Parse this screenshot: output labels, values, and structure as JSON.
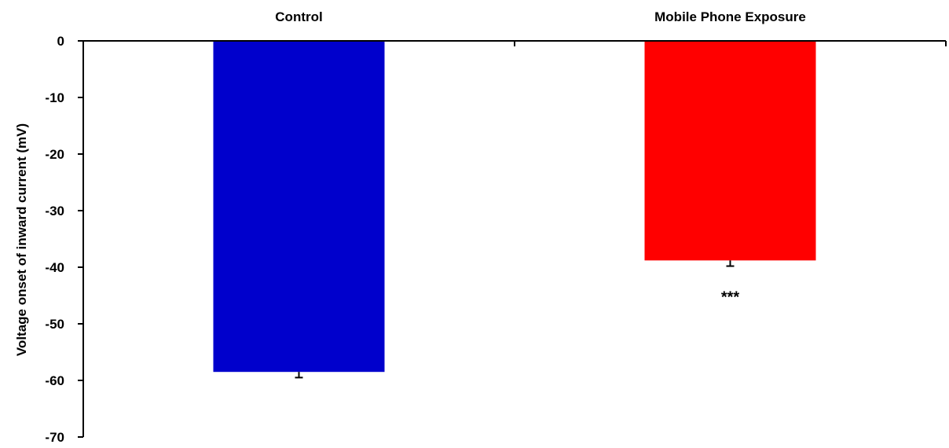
{
  "chart_data": {
    "type": "bar",
    "categories": [
      "Control",
      "Mobile Phone Exposure"
    ],
    "values": [
      -58.5,
      -38.8
    ],
    "errors": [
      1.0,
      1.0
    ],
    "colors": [
      "#0000CC",
      "#FF0000"
    ],
    "xlabel": "",
    "ylabel": "Voltage onset of inward current (mV)",
    "ylim": [
      -70,
      0
    ],
    "yticks": [
      0,
      -10,
      -20,
      -30,
      -40,
      -50,
      -60,
      -70
    ],
    "category_axis_position": "top",
    "grid": false,
    "annotations": [
      {
        "category": "Mobile Phone Exposure",
        "text": "***"
      }
    ]
  }
}
